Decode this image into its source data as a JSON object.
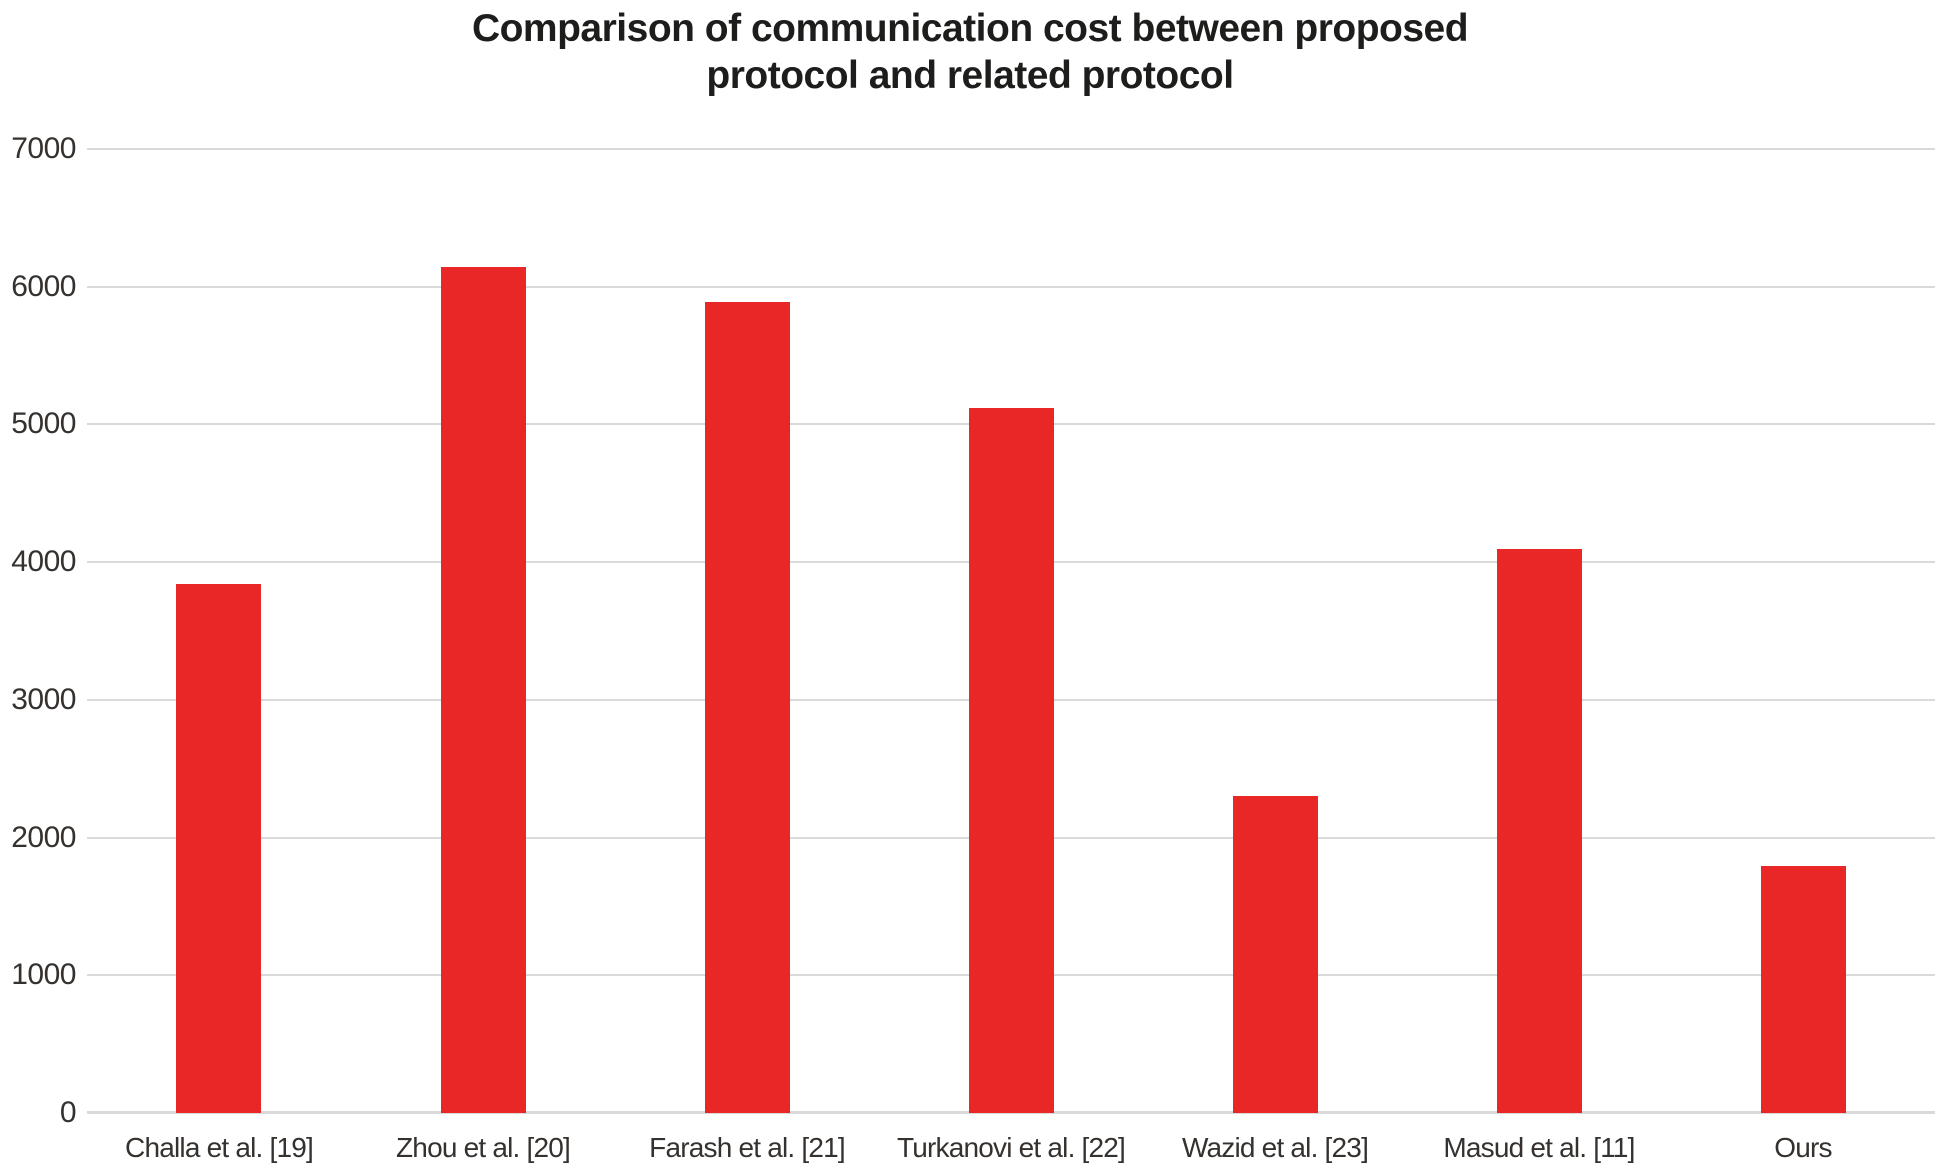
{
  "chart_data": {
    "type": "bar",
    "title": "Comparison of communication cost between proposed protocol and related protocol",
    "title_lines": [
      "Comparison of communication cost between proposed",
      "protocol and related protocol"
    ],
    "categories": [
      "Challa et al. [19]",
      "Zhou et al. [20]",
      "Farash et al. [21]",
      "Turkanovi et al. [22]",
      "Wazid et al. [23]",
      "Masud et al. [11]",
      "Ours"
    ],
    "values": [
      3840,
      6144,
      5888,
      5120,
      2304,
      4096,
      1792
    ],
    "xlabel": "",
    "ylabel": "",
    "ylim": [
      0,
      7000
    ],
    "yticks": [
      0,
      1000,
      2000,
      3000,
      4000,
      5000,
      6000,
      7000
    ],
    "grid": true,
    "legend": "none",
    "bar_color": "#ea2727",
    "gridline_color": "#d9d9d9",
    "title_color": "#1d1d1b",
    "tick_label_color": "#35312e"
  }
}
